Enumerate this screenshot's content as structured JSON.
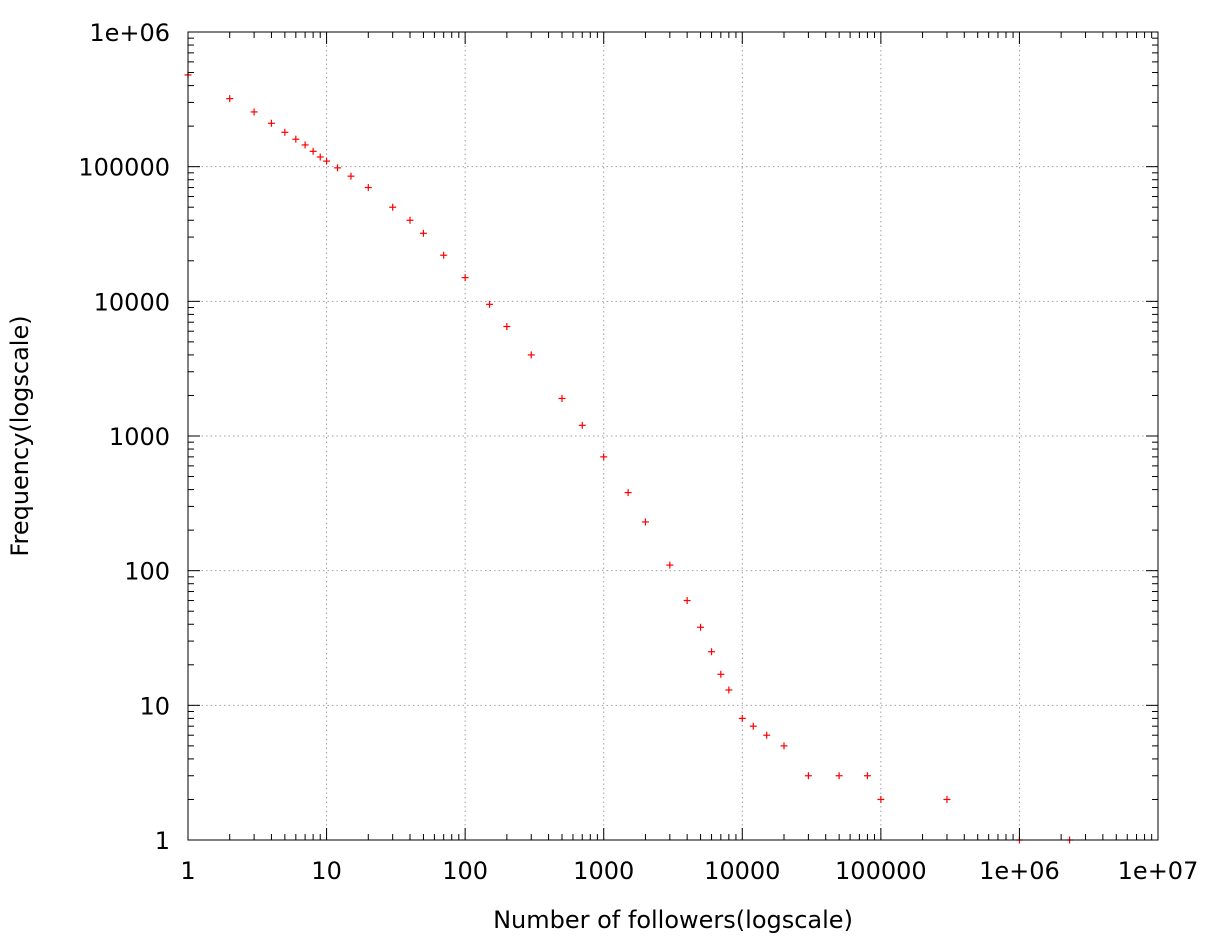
{
  "chart_data": {
    "type": "scatter",
    "title": "",
    "xlabel": "Number of followers(logscale)",
    "ylabel": "Frequency(logscale)",
    "xscale": "log",
    "yscale": "log",
    "xlim": [
      1,
      10000000
    ],
    "ylim": [
      1,
      1000000
    ],
    "grid": true,
    "legend": "none",
    "marker": "+",
    "color": "#ff0000",
    "x_tick_labels": [
      "1",
      "10",
      "100",
      "1000",
      "10000",
      "100000",
      "1e+06",
      "1e+07"
    ],
    "y_tick_labels": [
      "1",
      "10",
      "100",
      "1000",
      "10000",
      "100000",
      "1e+06"
    ],
    "series": [
      {
        "values": [
          [
            1,
            480000
          ],
          [
            2,
            320000
          ],
          [
            3,
            255000
          ],
          [
            4,
            210000
          ],
          [
            5,
            180000
          ],
          [
            6,
            160000
          ],
          [
            7,
            145000
          ],
          [
            8,
            130000
          ],
          [
            9,
            118000
          ],
          [
            10,
            110000
          ],
          [
            12,
            98000
          ],
          [
            15,
            85000
          ],
          [
            20,
            70000
          ],
          [
            30,
            50000
          ],
          [
            40,
            40000
          ],
          [
            50,
            32000
          ],
          [
            70,
            22000
          ],
          [
            100,
            15000
          ],
          [
            150,
            9500
          ],
          [
            200,
            6500
          ],
          [
            300,
            4000
          ],
          [
            500,
            1900
          ],
          [
            700,
            1200
          ],
          [
            1000,
            700
          ],
          [
            1500,
            380
          ],
          [
            2000,
            230
          ],
          [
            3000,
            110
          ],
          [
            4000,
            60
          ],
          [
            5000,
            38
          ],
          [
            6000,
            25
          ],
          [
            7000,
            17
          ],
          [
            8000,
            13
          ],
          [
            10000,
            8
          ],
          [
            12000,
            7
          ],
          [
            15000,
            6
          ],
          [
            20000,
            5
          ],
          [
            30000,
            3
          ],
          [
            50000,
            3
          ],
          [
            80000,
            3
          ],
          [
            100000,
            2
          ],
          [
            300000,
            2
          ],
          [
            1000000,
            1
          ],
          [
            2300000,
            1
          ]
        ]
      }
    ]
  }
}
